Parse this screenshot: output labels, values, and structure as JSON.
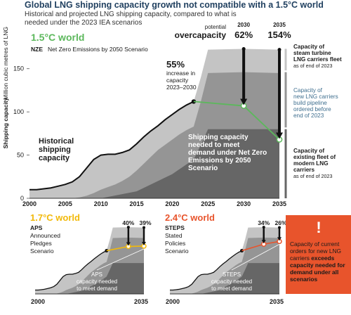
{
  "title": "Global LNG shipping capacity growth not compatible with a 1.5°C world",
  "subtitle": "Historical and projected LNG shipping capacity, compared to what is needed under the 2023 IEA scenarios",
  "colors": {
    "steam": "#c4c4c4",
    "pipeline": "#959595",
    "modern": "#666666",
    "nze": "#5cb85c",
    "aps": "#f2b90a",
    "steps": "#e8542c",
    "line": "#111111",
    "title": "#1f3f5f",
    "footer": "#3f6f8f"
  },
  "main": {
    "world_label": "1.5°C world",
    "scenario_code": "NZE",
    "scenario_name": "Net Zero Emissions by 2050 Scenario",
    "ylabel_bold": "Shipping capacity",
    "ylabel_rest": "Million cubic metres of LNG",
    "potential": "potential",
    "overcapacity": "overcapacity",
    "pct_2030": "62%",
    "pct_2035": "154%",
    "year_2030": "2030",
    "year_2035": "2035",
    "increase_pct": "55%",
    "increase_lines": [
      "increase in",
      "capacity",
      "2023–2030"
    ],
    "historical": [
      "Historical",
      "shipping",
      "capacity"
    ],
    "needed_lines": [
      "Shipping capacity",
      "needed to meet",
      "demand under Net Zero",
      "Emissions by 2050",
      "Scenario"
    ],
    "legend": [
      {
        "lines": [
          "Capacity of",
          "steam turbine",
          "LNG carriers fleet"
        ],
        "sub": "as of end of 2023"
      },
      {
        "lines": [
          "Capacity of",
          "new LNG carriers",
          "build pipeline",
          "ordered before",
          "end of 2023"
        ],
        "sub": ""
      },
      {
        "lines": [
          "Capacity of",
          "existing fleet of",
          "modern LNG",
          "carriers"
        ],
        "sub": "as of end of 2023"
      }
    ]
  },
  "aps": {
    "world_label": "1.7°C world",
    "code": "APS",
    "name_lines": [
      "Announced",
      "Pledges",
      "Scenario"
    ],
    "pct_a": "40%",
    "pct_b": "39%",
    "note_lines": [
      "APS",
      "capacity needed",
      "to meet demand"
    ],
    "x_start": "2000",
    "x_end": "2035"
  },
  "steps": {
    "world_label": "2.4°C world",
    "code": "STEPS",
    "name_lines": [
      "Stated",
      "Policies",
      "Scenario"
    ],
    "pct_a": "34%",
    "pct_b": "26%",
    "note_lines": [
      "STEPS",
      "capacity needed",
      "to meet demand"
    ],
    "x_start": "2000",
    "x_end": "2035"
  },
  "warning": {
    "icon": "exclamation-icon",
    "bang": "!",
    "text_pre": "Capacity of current orders for new LNG carriers ",
    "text_bold": "exceeds capacity needed for demand under all scenarios"
  },
  "chart_data": [
    {
      "type": "area",
      "title": "1.5°C world",
      "ylabel": "Shipping capacity Million cubic metres of LNG",
      "xlim": [
        2000,
        2035
      ],
      "ylim": [
        0,
        175
      ],
      "x_ticks": [
        2000,
        2005,
        2010,
        2015,
        2020,
        2025,
        2030,
        2035
      ],
      "y_ticks": [
        0,
        50,
        100,
        150
      ],
      "series": [
        {
          "name": "Capacity of steam turbine LNG carriers fleet",
          "x": [
            2000,
            2001,
            2002,
            2003,
            2004,
            2005,
            2006,
            2007,
            2008,
            2009,
            2010,
            2011,
            2012,
            2013,
            2014,
            2015,
            2016,
            2017,
            2018,
            2019,
            2020,
            2021,
            2022,
            2023,
            2024,
            2025,
            2030,
            2035
          ],
          "values": [
            10,
            10,
            11,
            12,
            14,
            16,
            19,
            25,
            35,
            45,
            50,
            51,
            51,
            53,
            56,
            63,
            71,
            78,
            84,
            91,
            97,
            103,
            108,
            112,
            140,
            172,
            173,
            172
          ]
        },
        {
          "name": "Capacity of new LNG carriers build pipeline ordered before end of 2023",
          "x": [
            2000,
            2001,
            2002,
            2003,
            2004,
            2005,
            2006,
            2007,
            2008,
            2009,
            2010,
            2011,
            2012,
            2013,
            2014,
            2015,
            2016,
            2017,
            2018,
            2019,
            2020,
            2021,
            2022,
            2023,
            2024,
            2025,
            2030,
            2035
          ],
          "values": [
            0,
            0,
            0,
            0,
            0,
            0,
            0,
            1,
            3,
            6,
            10,
            13,
            16,
            20,
            25,
            32,
            40,
            48,
            56,
            62,
            68,
            74,
            79,
            83,
            112,
            145,
            146,
            145
          ]
        },
        {
          "name": "Capacity of existing fleet of modern LNG carriers",
          "x": [
            2000,
            2005,
            2007,
            2010,
            2015,
            2020,
            2023,
            2024,
            2025,
            2030,
            2035
          ],
          "values": [
            0,
            0,
            0,
            0,
            8,
            28,
            45,
            62,
            80,
            80,
            80
          ]
        }
      ],
      "historical": {
        "x": [
          2000,
          2001,
          2002,
          2003,
          2004,
          2005,
          2006,
          2007,
          2008,
          2009,
          2010,
          2011,
          2012,
          2013,
          2014,
          2015,
          2016,
          2017,
          2018,
          2019,
          2020,
          2021,
          2022,
          2023
        ],
        "values": [
          10,
          10,
          11,
          12,
          14,
          16,
          19,
          25,
          35,
          45,
          50,
          51,
          51,
          53,
          56,
          63,
          71,
          78,
          84,
          91,
          97,
          103,
          108,
          112
        ]
      },
      "needed": {
        "x": [
          2023,
          2030,
          2035
        ],
        "values": [
          112,
          107,
          68
        ]
      },
      "annotations": [
        {
          "x": 2030,
          "label": "62%"
        },
        {
          "x": 2035,
          "label": "154%"
        }
      ]
    },
    {
      "type": "area",
      "title": "1.7°C world",
      "xlim": [
        2000,
        2035
      ],
      "ylim": [
        0,
        175
      ],
      "x_ticks": [
        2000,
        2035
      ],
      "needed": {
        "x": [
          2023,
          2030,
          2035
        ],
        "values": [
          112,
          123,
          124
        ]
      },
      "annotations": [
        {
          "x": 2030,
          "label": "40%"
        },
        {
          "x": 2035,
          "label": "39%"
        }
      ]
    },
    {
      "type": "area",
      "title": "2.4°C world",
      "xlim": [
        2000,
        2035
      ],
      "ylim": [
        0,
        175
      ],
      "x_ticks": [
        2000,
        2035
      ],
      "needed": {
        "x": [
          2023,
          2030,
          2035
        ],
        "values": [
          112,
          129,
          136
        ]
      },
      "annotations": [
        {
          "x": 2030,
          "label": "34%"
        },
        {
          "x": 2035,
          "label": "26%"
        }
      ]
    }
  ]
}
